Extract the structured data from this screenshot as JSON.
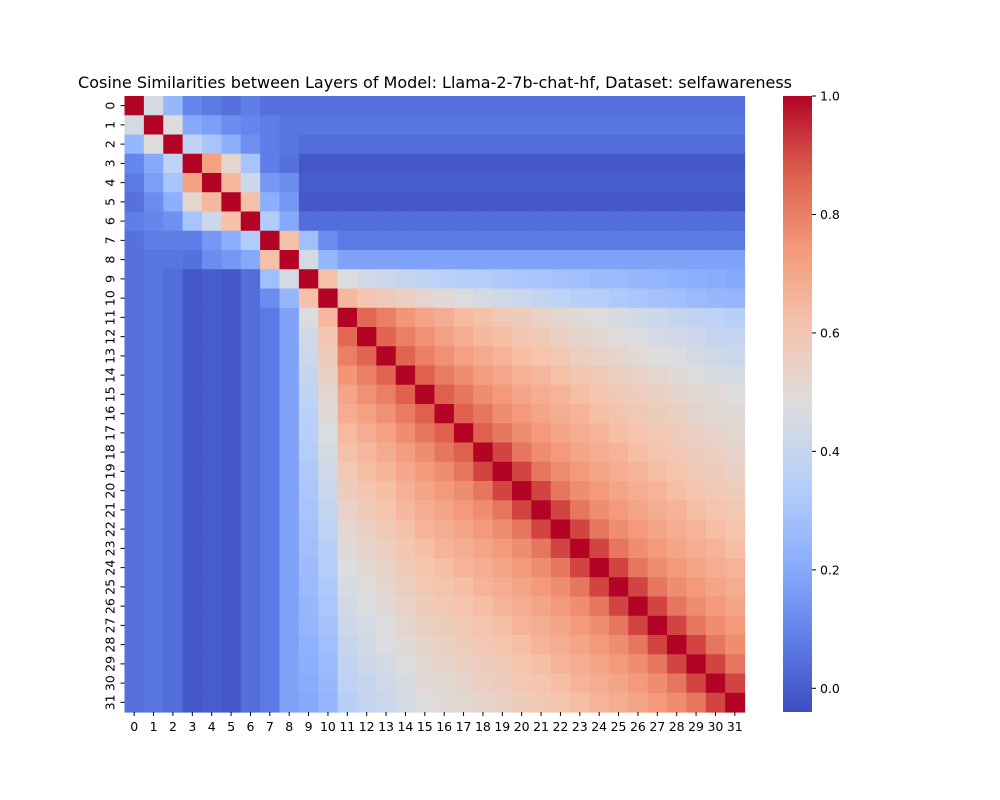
{
  "chart_data": {
    "type": "heatmap",
    "title": "Cosine Similarities between Layers of Model: Llama-2-7b-chat-hf, Dataset: selfawareness",
    "xlabel": "",
    "ylabel": "",
    "x_ticklabels": [
      "0",
      "1",
      "2",
      "3",
      "4",
      "5",
      "6",
      "7",
      "8",
      "9",
      "10",
      "11",
      "12",
      "13",
      "14",
      "15",
      "16",
      "17",
      "18",
      "19",
      "20",
      "21",
      "22",
      "23",
      "24",
      "25",
      "26",
      "27",
      "28",
      "29",
      "30",
      "31"
    ],
    "y_ticklabels": [
      "0",
      "1",
      "2",
      "3",
      "4",
      "5",
      "6",
      "7",
      "8",
      "9",
      "10",
      "11",
      "12",
      "13",
      "14",
      "15",
      "16",
      "17",
      "18",
      "19",
      "20",
      "21",
      "22",
      "23",
      "24",
      "25",
      "26",
      "27",
      "28",
      "29",
      "30",
      "31"
    ],
    "colormap": "coolwarm",
    "vmin": -0.04,
    "vmax": 1.0,
    "colorbar_ticks": [
      "0.0",
      "0.2",
      "0.4",
      "0.6",
      "0.8",
      "1.0"
    ],
    "matrix": [
      [
        1,
        0.45,
        0.25,
        0.1,
        0.07,
        0.05,
        0.08,
        0.05,
        0.05,
        0.05,
        0.05,
        0.05,
        0.05,
        0.05,
        0.05,
        0.05,
        0.05,
        0.05,
        0.05,
        0.05,
        0.05,
        0.05,
        0.05,
        0.05,
        0.05,
        0.05,
        0.05,
        0.05,
        0.05,
        0.05,
        0.05,
        0.05
      ],
      [
        0.45,
        1,
        0.48,
        0.2,
        0.17,
        0.12,
        0.1,
        0.08,
        0.06,
        0.06,
        0.06,
        0.06,
        0.06,
        0.06,
        0.06,
        0.06,
        0.06,
        0.06,
        0.06,
        0.06,
        0.06,
        0.06,
        0.06,
        0.06,
        0.06,
        0.06,
        0.06,
        0.06,
        0.06,
        0.06,
        0.06,
        0.06
      ],
      [
        0.25,
        0.48,
        1,
        0.38,
        0.3,
        0.22,
        0.13,
        0.08,
        0.06,
        0.04,
        0.04,
        0.04,
        0.04,
        0.04,
        0.04,
        0.04,
        0.04,
        0.04,
        0.04,
        0.04,
        0.04,
        0.04,
        0.04,
        0.04,
        0.04,
        0.04,
        0.04,
        0.04,
        0.04,
        0.04,
        0.04,
        0.04
      ],
      [
        0.1,
        0.2,
        0.38,
        1,
        0.72,
        0.52,
        0.3,
        0.08,
        0.05,
        -0.01,
        -0.01,
        -0.01,
        -0.01,
        -0.01,
        -0.01,
        -0.01,
        -0.01,
        -0.01,
        -0.01,
        -0.01,
        -0.01,
        -0.01,
        -0.01,
        -0.01,
        -0.01,
        -0.01,
        -0.01,
        -0.01,
        -0.01,
        -0.01,
        -0.01,
        -0.01
      ],
      [
        0.07,
        0.17,
        0.3,
        0.72,
        1,
        0.65,
        0.42,
        0.15,
        0.12,
        0,
        0,
        0,
        0,
        0,
        0,
        0,
        0,
        0,
        0,
        0,
        0,
        0,
        0,
        0,
        0,
        0,
        0,
        0,
        0,
        0,
        0,
        0
      ],
      [
        0.05,
        0.12,
        0.22,
        0.52,
        0.65,
        1,
        0.62,
        0.22,
        0.15,
        -0.01,
        -0.01,
        -0.01,
        -0.01,
        -0.01,
        -0.01,
        -0.01,
        -0.01,
        -0.01,
        -0.01,
        -0.01,
        -0.01,
        -0.01,
        -0.01,
        -0.01,
        -0.01,
        -0.01,
        -0.01,
        -0.01,
        -0.01,
        -0.01,
        -0.01,
        -0.01
      ],
      [
        0.08,
        0.1,
        0.13,
        0.3,
        0.42,
        0.62,
        1,
        0.33,
        0.2,
        0.04,
        0.04,
        0.04,
        0.04,
        0.04,
        0.04,
        0.04,
        0.04,
        0.04,
        0.04,
        0.04,
        0.04,
        0.04,
        0.04,
        0.04,
        0.04,
        0.04,
        0.04,
        0.04,
        0.04,
        0.04,
        0.04,
        0.04
      ],
      [
        0.05,
        0.08,
        0.08,
        0.08,
        0.15,
        0.22,
        0.33,
        1,
        0.62,
        0.28,
        0.12,
        0.07,
        0.07,
        0.07,
        0.07,
        0.07,
        0.07,
        0.07,
        0.07,
        0.07,
        0.07,
        0.07,
        0.07,
        0.07,
        0.07,
        0.07,
        0.07,
        0.07,
        0.07,
        0.07,
        0.07,
        0.07
      ],
      [
        0.05,
        0.06,
        0.06,
        0.05,
        0.12,
        0.15,
        0.2,
        0.62,
        1,
        0.45,
        0.25,
        0.18,
        0.18,
        0.18,
        0.18,
        0.18,
        0.18,
        0.18,
        0.18,
        0.18,
        0.18,
        0.18,
        0.18,
        0.18,
        0.18,
        0.18,
        0.18,
        0.18,
        0.18,
        0.18,
        0.18,
        0.18
      ],
      [
        0.05,
        0.06,
        0.04,
        -0.01,
        0,
        -0.01,
        0.04,
        0.28,
        0.45,
        1,
        0.62,
        0.47,
        0.44,
        0.42,
        0.4,
        0.38,
        0.36,
        0.35,
        0.34,
        0.32,
        0.31,
        0.3,
        0.29,
        0.28,
        0.27,
        0.26,
        0.25,
        0.24,
        0.23,
        0.22,
        0.21,
        0.2
      ],
      [
        0.05,
        0.06,
        0.04,
        -0.01,
        0,
        -0.01,
        0.04,
        0.12,
        0.25,
        0.62,
        1,
        0.65,
        0.6,
        0.58,
        0.55,
        0.52,
        0.5,
        0.47,
        0.45,
        0.43,
        0.41,
        0.39,
        0.37,
        0.35,
        0.34,
        0.32,
        0.31,
        0.29,
        0.28,
        0.26,
        0.25,
        0.24
      ],
      [
        0.05,
        0.06,
        0.04,
        -0.01,
        0,
        -0.01,
        0.04,
        0.07,
        0.18,
        0.47,
        0.65,
        1,
        0.85,
        0.8,
        0.75,
        0.71,
        0.68,
        0.64,
        0.62,
        0.59,
        0.57,
        0.54,
        0.52,
        0.5,
        0.48,
        0.46,
        0.44,
        0.42,
        0.4,
        0.38,
        0.37,
        0.35
      ],
      [
        0.05,
        0.06,
        0.04,
        -0.01,
        0,
        -0.01,
        0.04,
        0.07,
        0.18,
        0.44,
        0.6,
        0.85,
        1,
        0.86,
        0.8,
        0.76,
        0.72,
        0.68,
        0.65,
        0.63,
        0.6,
        0.58,
        0.55,
        0.53,
        0.51,
        0.49,
        0.47,
        0.45,
        0.44,
        0.42,
        0.4,
        0.39
      ],
      [
        0.05,
        0.06,
        0.04,
        -0.01,
        0,
        -0.01,
        0.04,
        0.07,
        0.18,
        0.42,
        0.58,
        0.8,
        0.86,
        1,
        0.86,
        0.8,
        0.76,
        0.72,
        0.69,
        0.66,
        0.63,
        0.61,
        0.59,
        0.56,
        0.54,
        0.52,
        0.5,
        0.48,
        0.47,
        0.45,
        0.43,
        0.41
      ],
      [
        0.05,
        0.06,
        0.04,
        -0.01,
        0,
        -0.01,
        0.04,
        0.07,
        0.18,
        0.4,
        0.55,
        0.75,
        0.8,
        0.86,
        1,
        0.87,
        0.81,
        0.77,
        0.73,
        0.7,
        0.67,
        0.65,
        0.62,
        0.6,
        0.58,
        0.56,
        0.54,
        0.52,
        0.5,
        0.48,
        0.46,
        0.45
      ],
      [
        0.05,
        0.06,
        0.04,
        -0.01,
        0,
        -0.01,
        0.04,
        0.07,
        0.18,
        0.38,
        0.52,
        0.71,
        0.76,
        0.8,
        0.87,
        1,
        0.87,
        0.82,
        0.77,
        0.74,
        0.71,
        0.68,
        0.66,
        0.63,
        0.61,
        0.59,
        0.57,
        0.55,
        0.53,
        0.51,
        0.5,
        0.48
      ],
      [
        0.05,
        0.06,
        0.04,
        -0.01,
        0,
        -0.01,
        0.04,
        0.07,
        0.18,
        0.36,
        0.5,
        0.68,
        0.72,
        0.76,
        0.81,
        0.87,
        1,
        0.87,
        0.82,
        0.77,
        0.74,
        0.71,
        0.68,
        0.66,
        0.63,
        0.61,
        0.59,
        0.57,
        0.55,
        0.53,
        0.51,
        0.5
      ],
      [
        0.05,
        0.06,
        0.04,
        -0.01,
        0,
        -0.01,
        0.04,
        0.07,
        0.18,
        0.35,
        0.47,
        0.64,
        0.68,
        0.72,
        0.77,
        0.82,
        0.87,
        1,
        0.87,
        0.82,
        0.77,
        0.74,
        0.71,
        0.68,
        0.66,
        0.63,
        0.61,
        0.59,
        0.57,
        0.55,
        0.53,
        0.51
      ],
      [
        0.05,
        0.06,
        0.04,
        -0.01,
        0,
        -0.01,
        0.04,
        0.07,
        0.18,
        0.34,
        0.45,
        0.62,
        0.65,
        0.69,
        0.73,
        0.77,
        0.82,
        0.87,
        1,
        0.91,
        0.82,
        0.77,
        0.74,
        0.71,
        0.68,
        0.66,
        0.63,
        0.61,
        0.59,
        0.57,
        0.55,
        0.53
      ],
      [
        0.05,
        0.06,
        0.04,
        -0.01,
        0,
        -0.01,
        0.04,
        0.07,
        0.18,
        0.32,
        0.43,
        0.59,
        0.63,
        0.66,
        0.7,
        0.74,
        0.77,
        0.82,
        0.91,
        1,
        0.91,
        0.82,
        0.77,
        0.74,
        0.71,
        0.68,
        0.66,
        0.63,
        0.61,
        0.59,
        0.57,
        0.55
      ],
      [
        0.05,
        0.06,
        0.04,
        -0.01,
        0,
        -0.01,
        0.04,
        0.07,
        0.18,
        0.31,
        0.41,
        0.57,
        0.6,
        0.63,
        0.67,
        0.71,
        0.74,
        0.77,
        0.82,
        0.91,
        1,
        0.91,
        0.82,
        0.77,
        0.74,
        0.71,
        0.68,
        0.66,
        0.63,
        0.61,
        0.59,
        0.57
      ],
      [
        0.05,
        0.06,
        0.04,
        -0.01,
        0,
        -0.01,
        0.04,
        0.07,
        0.18,
        0.3,
        0.39,
        0.54,
        0.58,
        0.61,
        0.65,
        0.68,
        0.71,
        0.74,
        0.77,
        0.82,
        0.91,
        1,
        0.91,
        0.82,
        0.77,
        0.74,
        0.71,
        0.68,
        0.66,
        0.63,
        0.61,
        0.59
      ],
      [
        0.05,
        0.06,
        0.04,
        -0.01,
        0,
        -0.01,
        0.04,
        0.07,
        0.18,
        0.29,
        0.37,
        0.52,
        0.55,
        0.59,
        0.62,
        0.66,
        0.68,
        0.71,
        0.74,
        0.77,
        0.82,
        0.91,
        1,
        0.91,
        0.82,
        0.77,
        0.74,
        0.71,
        0.68,
        0.66,
        0.63,
        0.61
      ],
      [
        0.05,
        0.06,
        0.04,
        -0.01,
        0,
        -0.01,
        0.04,
        0.07,
        0.18,
        0.28,
        0.35,
        0.5,
        0.53,
        0.56,
        0.6,
        0.63,
        0.66,
        0.68,
        0.71,
        0.74,
        0.77,
        0.82,
        0.91,
        1,
        0.91,
        0.82,
        0.77,
        0.74,
        0.71,
        0.68,
        0.66,
        0.63
      ],
      [
        0.05,
        0.06,
        0.04,
        -0.01,
        0,
        -0.01,
        0.04,
        0.07,
        0.18,
        0.27,
        0.34,
        0.48,
        0.51,
        0.54,
        0.58,
        0.61,
        0.63,
        0.66,
        0.68,
        0.71,
        0.74,
        0.77,
        0.82,
        0.91,
        1,
        0.91,
        0.82,
        0.77,
        0.74,
        0.71,
        0.68,
        0.66
      ],
      [
        0.05,
        0.06,
        0.04,
        -0.01,
        0,
        -0.01,
        0.04,
        0.07,
        0.18,
        0.26,
        0.32,
        0.46,
        0.49,
        0.52,
        0.56,
        0.59,
        0.61,
        0.63,
        0.66,
        0.68,
        0.71,
        0.74,
        0.77,
        0.82,
        0.91,
        1,
        0.91,
        0.82,
        0.77,
        0.74,
        0.71,
        0.68
      ],
      [
        0.05,
        0.06,
        0.04,
        -0.01,
        0,
        -0.01,
        0.04,
        0.07,
        0.18,
        0.25,
        0.31,
        0.44,
        0.47,
        0.5,
        0.54,
        0.57,
        0.59,
        0.61,
        0.63,
        0.66,
        0.68,
        0.71,
        0.74,
        0.77,
        0.82,
        0.91,
        1,
        0.91,
        0.82,
        0.77,
        0.74,
        0.71
      ],
      [
        0.05,
        0.06,
        0.04,
        -0.01,
        0,
        -0.01,
        0.04,
        0.07,
        0.18,
        0.24,
        0.29,
        0.42,
        0.45,
        0.48,
        0.52,
        0.55,
        0.57,
        0.59,
        0.61,
        0.63,
        0.66,
        0.68,
        0.71,
        0.74,
        0.77,
        0.82,
        0.91,
        1,
        0.91,
        0.82,
        0.77,
        0.74
      ],
      [
        0.05,
        0.06,
        0.04,
        -0.01,
        0,
        -0.01,
        0.04,
        0.07,
        0.18,
        0.23,
        0.28,
        0.4,
        0.44,
        0.47,
        0.5,
        0.53,
        0.55,
        0.57,
        0.59,
        0.61,
        0.63,
        0.66,
        0.68,
        0.71,
        0.74,
        0.77,
        0.82,
        0.91,
        1,
        0.91,
        0.82,
        0.77
      ],
      [
        0.05,
        0.06,
        0.04,
        -0.01,
        0,
        -0.01,
        0.04,
        0.07,
        0.18,
        0.22,
        0.26,
        0.38,
        0.42,
        0.45,
        0.48,
        0.51,
        0.53,
        0.55,
        0.57,
        0.59,
        0.61,
        0.63,
        0.66,
        0.68,
        0.71,
        0.74,
        0.77,
        0.82,
        0.91,
        1,
        0.91,
        0.82
      ],
      [
        0.05,
        0.06,
        0.04,
        -0.01,
        0,
        -0.01,
        0.04,
        0.07,
        0.18,
        0.21,
        0.25,
        0.37,
        0.4,
        0.43,
        0.46,
        0.5,
        0.51,
        0.53,
        0.55,
        0.57,
        0.59,
        0.61,
        0.63,
        0.66,
        0.68,
        0.71,
        0.74,
        0.77,
        0.82,
        0.91,
        1,
        0.91
      ],
      [
        0.05,
        0.06,
        0.04,
        -0.01,
        0,
        -0.01,
        0.04,
        0.07,
        0.18,
        0.2,
        0.24,
        0.35,
        0.39,
        0.41,
        0.45,
        0.48,
        0.5,
        0.51,
        0.53,
        0.55,
        0.57,
        0.59,
        0.61,
        0.63,
        0.66,
        0.68,
        0.71,
        0.74,
        0.77,
        0.82,
        0.91,
        1
      ]
    ]
  }
}
